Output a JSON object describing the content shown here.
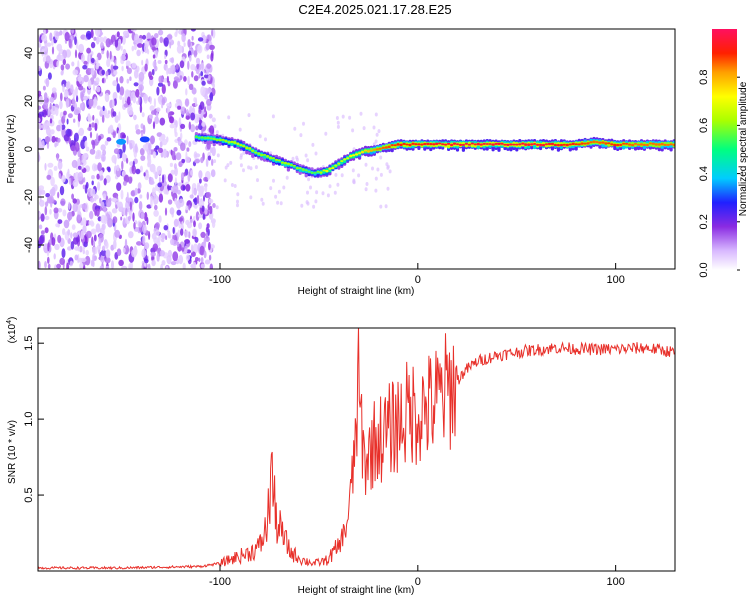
{
  "title": "C2E4.2025.021.17.28.E25",
  "colors": {
    "snr_line": "#e8302a",
    "axis": "#000000",
    "background": "#ffffff"
  },
  "chart_data": [
    {
      "type": "heatmap",
      "name": "spectrogram",
      "xlabel": "Height of straight line (km)",
      "ylabel": "Frequency (Hz)",
      "xlim": [
        -192,
        130
      ],
      "ylim": [
        -50,
        50
      ],
      "x_ticks": [
        -100,
        0,
        100
      ],
      "x_tick_labels": [
        "-100",
        "0",
        "100"
      ],
      "y_ticks": [
        -40,
        -20,
        0,
        20,
        40
      ],
      "y_tick_labels": [
        "-40",
        "-20",
        "0",
        "20",
        "40"
      ],
      "noise_region_km": [
        -192,
        -103
      ],
      "ridge": {
        "description": "dominant frequency track vs height",
        "x": [
          -112,
          -100,
          -90,
          -80,
          -70,
          -60,
          -52,
          -46,
          -40,
          -34,
          -28,
          -20,
          -10,
          0,
          20,
          40,
          60,
          80,
          90,
          100,
          110,
          130
        ],
        "freq": [
          5,
          4,
          2,
          -2,
          -5,
          -8,
          -10,
          -9,
          -6,
          -3,
          -1,
          0,
          2,
          2,
          2,
          2,
          2,
          2,
          3,
          2,
          2,
          2
        ],
        "amplitude": [
          0.55,
          0.6,
          0.65,
          0.6,
          0.62,
          0.6,
          0.55,
          0.7,
          0.65,
          0.7,
          0.75,
          0.85,
          0.9,
          0.92,
          0.95,
          0.95,
          0.95,
          0.9,
          0.85,
          0.9,
          0.85,
          0.85
        ]
      },
      "isolated_features": [
        {
          "x": -150,
          "freq": 3,
          "amplitude": 0.35
        },
        {
          "x": -138,
          "freq": 4,
          "amplitude": 0.3
        }
      ],
      "colorbar": {
        "label": "Normalized spectral amplitude",
        "range": [
          0,
          1
        ],
        "ticks": [
          0.0,
          0.2,
          0.4,
          0.6,
          0.8
        ],
        "tick_labels": [
          "0.0",
          "0.2",
          "0.4",
          "0.6",
          "0.8"
        ]
      }
    },
    {
      "type": "line",
      "name": "snr",
      "xlabel": "Height of straight line (km)",
      "ylabel": "SNR (10 * v/v)",
      "scale_note": "(x10",
      "scale_exp": "4",
      "scale_close": ")",
      "xlim": [
        -192,
        130
      ],
      "ylim": [
        0,
        1.6
      ],
      "x_ticks": [
        -100,
        0,
        100
      ],
      "x_tick_labels": [
        "-100",
        "0",
        "100"
      ],
      "y_ticks": [
        0.5,
        1.0,
        1.5
      ],
      "y_tick_labels": [
        "0.5",
        "1.0",
        "1.5"
      ],
      "series": [
        {
          "name": "SNR",
          "points": [
            [
              -192,
              0.02
            ],
            [
              -150,
              0.02
            ],
            [
              -110,
              0.03
            ],
            [
              -100,
              0.05
            ],
            [
              -92,
              0.09
            ],
            [
              -85,
              0.12
            ],
            [
              -80,
              0.16
            ],
            [
              -76,
              0.3
            ],
            [
              -74,
              0.7
            ],
            [
              -72,
              0.35
            ],
            [
              -68,
              0.22
            ],
            [
              -64,
              0.12
            ],
            [
              -58,
              0.07
            ],
            [
              -52,
              0.05
            ],
            [
              -46,
              0.07
            ],
            [
              -40,
              0.16
            ],
            [
              -36,
              0.3
            ],
            [
              -33,
              0.6
            ],
            [
              -30,
              1.2
            ],
            [
              -27,
              0.7
            ],
            [
              -22,
              0.85
            ],
            [
              -16,
              0.9
            ],
            [
              -10,
              0.98
            ],
            [
              -4,
              1.05
            ],
            [
              0,
              1.05
            ],
            [
              6,
              1.08
            ],
            [
              12,
              1.15
            ],
            [
              18,
              1.22
            ],
            [
              24,
              1.32
            ],
            [
              30,
              1.38
            ],
            [
              40,
              1.42
            ],
            [
              55,
              1.45
            ],
            [
              70,
              1.47
            ],
            [
              85,
              1.46
            ],
            [
              100,
              1.46
            ],
            [
              115,
              1.47
            ],
            [
              130,
              1.44
            ]
          ]
        }
      ]
    }
  ]
}
